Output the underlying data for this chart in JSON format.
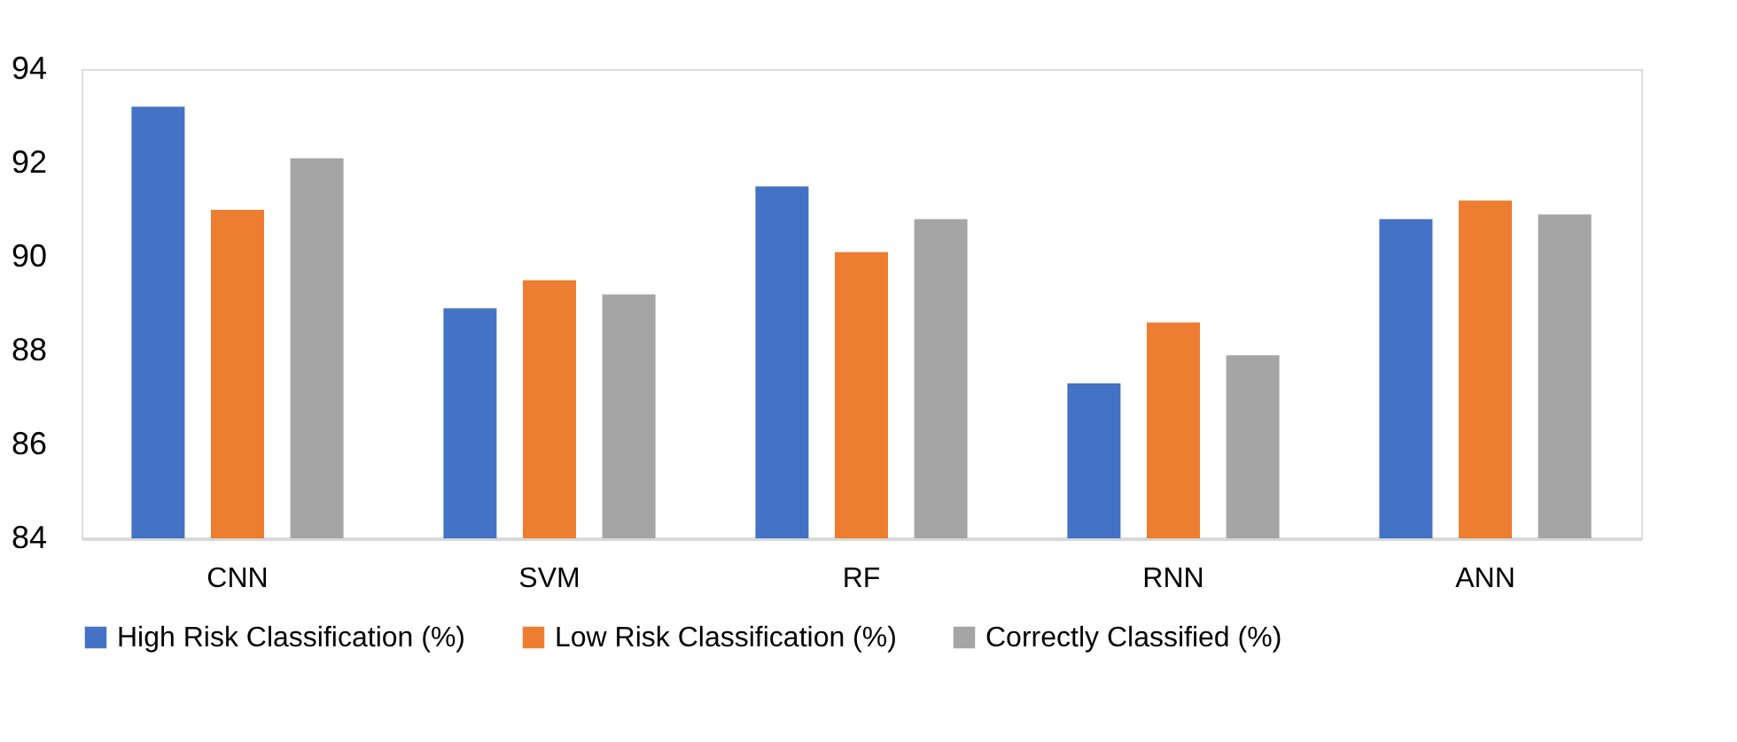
{
  "chart_data": {
    "type": "bar",
    "categories": [
      "CNN",
      "SVM",
      "RF",
      "RNN",
      "ANN"
    ],
    "series": [
      {
        "name": "High Risk Classification (%)",
        "color": "#4472c4",
        "values": [
          93.2,
          88.9,
          91.5,
          87.3,
          90.8
        ]
      },
      {
        "name": "Low Risk Classification (%)",
        "color": "#ed7d31",
        "values": [
          91.0,
          89.5,
          90.1,
          88.6,
          91.2
        ]
      },
      {
        "name": "Correctly Classified (%)",
        "color": "#a5a5a5",
        "values": [
          92.1,
          89.2,
          90.8,
          87.9,
          90.9
        ]
      }
    ],
    "ylim": [
      84,
      94
    ],
    "yticks": [
      84,
      86,
      88,
      90,
      92,
      94
    ],
    "grid": false,
    "legend": "bottom"
  }
}
